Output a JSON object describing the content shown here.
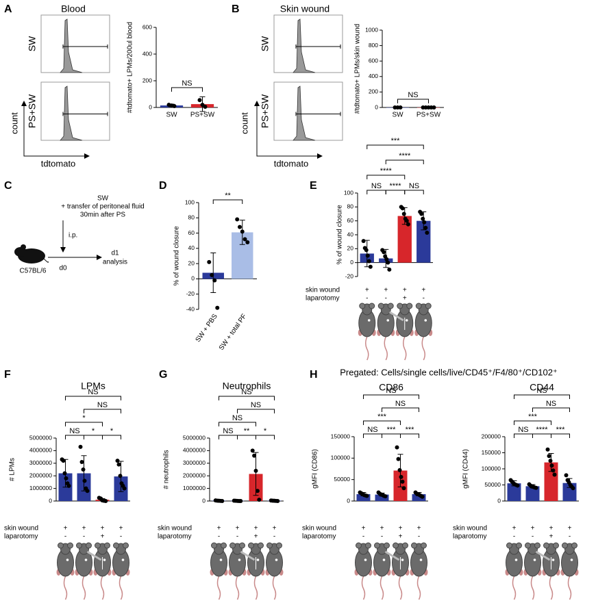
{
  "figure": {
    "panel_labels": [
      "A",
      "B",
      "C",
      "D",
      "E",
      "F",
      "G",
      "H"
    ],
    "flow": [
      {
        "title": "Blood",
        "rows": [
          "SW",
          "PS+SW"
        ],
        "row_colors": [
          "#2b3a9a",
          "#d7262b"
        ],
        "y_label": "count",
        "x_label": "tdtomato"
      },
      {
        "title": "Skin wound",
        "rows": [
          "SW",
          "PS+SW"
        ],
        "row_colors": [
          "#2b3a9a",
          "#d7262b"
        ],
        "y_label": "count",
        "x_label": "tdtomato"
      }
    ],
    "schematic": {
      "lines": [
        "SW",
        "+ transfer of peritoneal fluid",
        "30min after PS"
      ],
      "route": "i.p.",
      "strain": "C57BL/6",
      "start": "d0",
      "end": "d1",
      "end_note": "analysis"
    },
    "pregated": "Pregated: Cells/single cells/live/CD45⁺/F4/80⁺/CD102⁺"
  },
  "chart_data": [
    {
      "type": "bar",
      "ylabel": "#tdtomato+ LPMs/200ul blood",
      "categories": [
        "SW",
        "PS+SW"
      ],
      "values": [
        15,
        25
      ],
      "errors": [
        10,
        55
      ],
      "colors": [
        "#2b3a9a",
        "#d7262b"
      ],
      "points": [
        [
          20,
          15,
          10
        ],
        [
          55,
          20,
          5
        ]
      ],
      "ylim": [
        0,
        600
      ],
      "yticks": [
        0,
        200,
        400,
        600
      ],
      "comparisons": [
        {
          "groups": [
            0,
            1
          ],
          "label": "NS"
        }
      ]
    },
    {
      "type": "bar",
      "ylabel": "#tdtomato+ LPMs/skin wound",
      "categories": [
        "SW",
        "PS+SW"
      ],
      "values": [
        0,
        0
      ],
      "errors": [
        0,
        0
      ],
      "colors": [
        "#2b3a9a",
        "#d7262b"
      ],
      "points": [
        [
          0,
          0,
          0
        ],
        [
          0,
          0,
          0,
          0,
          0
        ]
      ],
      "ylim": [
        0,
        1000
      ],
      "yticks": [
        0,
        200,
        400,
        600,
        800,
        1000
      ],
      "comparisons": [
        {
          "groups": [
            0,
            1
          ],
          "label": "NS"
        }
      ]
    },
    {
      "type": "bar",
      "ylabel": "% of wound closure",
      "categories": [
        "SW + PBS",
        "SW + total PF"
      ],
      "values": [
        8,
        61
      ],
      "errors": [
        26,
        16
      ],
      "colors": [
        "#2b3a9a",
        "#a9bde6"
      ],
      "points": [
        [
          22,
          5,
          -2,
          -38
        ],
        [
          78,
          68,
          62,
          52,
          48
        ]
      ],
      "ylim": [
        -40,
        100
      ],
      "yticks": [
        -40,
        -20,
        0,
        20,
        40,
        60,
        80,
        100
      ],
      "comparisons": [
        {
          "groups": [
            0,
            1
          ],
          "label": "**"
        }
      ]
    },
    {
      "type": "bar",
      "ylabel": "% of wound closure",
      "conditions": [
        {
          "name": "skin wound",
          "values": [
            "+",
            "+",
            "+",
            "+"
          ]
        },
        {
          "name": "laparotomy",
          "values": [
            "-",
            "-",
            "+",
            "-"
          ]
        }
      ],
      "values": [
        13,
        6,
        67,
        60
      ],
      "errors": [
        19,
        13,
        12,
        13
      ],
      "colors": [
        "#2b3a9a",
        "#2b3a9a",
        "#d7262b",
        "#2b3a9a"
      ],
      "points": [
        [
          31,
          21,
          18,
          10,
          2,
          -6
        ],
        [
          18,
          15,
          9,
          5,
          0,
          -10
        ],
        [
          80,
          78,
          70,
          63,
          60,
          55
        ],
        [
          73,
          70,
          63,
          58,
          50,
          43
        ]
      ],
      "ylim": [
        -20,
        100
      ],
      "yticks": [
        -20,
        0,
        20,
        40,
        60,
        80,
        100
      ],
      "comparisons": [
        {
          "groups": [
            0,
            1
          ],
          "label": "NS"
        },
        {
          "groups": [
            2,
            3
          ],
          "label": "NS"
        },
        {
          "groups": [
            1,
            2
          ],
          "label": "****"
        },
        {
          "groups": [
            0,
            2
          ],
          "label": "****"
        },
        {
          "groups": [
            1,
            3
          ],
          "label": "****"
        },
        {
          "groups": [
            0,
            3
          ],
          "label": "***"
        }
      ]
    },
    {
      "type": "bar",
      "title": "LPMs",
      "ylabel": "# LPMs",
      "conditions": [
        {
          "name": "skin wound",
          "values": [
            "+",
            "+",
            "+",
            "+"
          ]
        },
        {
          "name": "laparotomy",
          "values": [
            "-",
            "-",
            "+",
            "-"
          ]
        }
      ],
      "values": [
        2200000,
        2200000,
        100000,
        1950000
      ],
      "errors": [
        1100000,
        1400000,
        100000,
        1200000
      ],
      "colors": [
        "#2b3a9a",
        "#2b3a9a",
        "#d7262b",
        "#2b3a9a"
      ],
      "points": [
        [
          3300000,
          3200000,
          2200000,
          1800000,
          1400000,
          1200000
        ],
        [
          4300000,
          3100000,
          2500000,
          1600000,
          1000000,
          800000
        ],
        [
          250000,
          200000,
          50000,
          20000,
          0
        ],
        [
          3200000,
          2900000,
          2000000,
          1400000,
          1200000,
          1000000
        ]
      ],
      "ylim": [
        0,
        5000000
      ],
      "yticks": [
        0,
        1000000,
        2000000,
        3000000,
        4000000,
        5000000
      ],
      "comparisons": [
        {
          "groups": [
            0,
            1
          ],
          "label": "NS"
        },
        {
          "groups": [
            1,
            2
          ],
          "label": "*"
        },
        {
          "groups": [
            2,
            3
          ],
          "label": "*"
        },
        {
          "groups": [
            0,
            2
          ],
          "label": "*"
        },
        {
          "groups": [
            1,
            3
          ],
          "label": "NS"
        },
        {
          "groups": [
            0,
            3
          ],
          "label": "NS"
        }
      ]
    },
    {
      "type": "bar",
      "title": "Neutrophils",
      "ylabel": "# neutrophils",
      "conditions": [
        {
          "name": "skin wound",
          "values": [
            "+",
            "+",
            "+",
            "+"
          ]
        },
        {
          "name": "laparotomy",
          "values": [
            "-",
            "-",
            "+",
            "-"
          ]
        }
      ],
      "values": [
        30000,
        20000,
        2150000,
        30000
      ],
      "errors": [
        30000,
        20000,
        1700000,
        20000
      ],
      "colors": [
        "#2b3a9a",
        "#2b3a9a",
        "#d7262b",
        "#2b3a9a"
      ],
      "points": [
        [
          50000,
          30000,
          20000,
          10000,
          0
        ],
        [
          30000,
          20000,
          10000,
          0,
          0
        ],
        [
          4000000,
          3600000,
          2400000,
          800000,
          100000
        ],
        [
          40000,
          30000,
          20000,
          10000,
          0
        ]
      ],
      "ylim": [
        0,
        5000000
      ],
      "yticks": [
        0,
        1000000,
        2000000,
        3000000,
        4000000,
        5000000
      ],
      "comparisons": [
        {
          "groups": [
            0,
            1
          ],
          "label": "NS"
        },
        {
          "groups": [
            1,
            2
          ],
          "label": "**"
        },
        {
          "groups": [
            2,
            3
          ],
          "label": "*"
        },
        {
          "groups": [
            0,
            2
          ],
          "label": "NS"
        },
        {
          "groups": [
            1,
            3
          ],
          "label": "NS"
        },
        {
          "groups": [
            0,
            3
          ],
          "label": "NS"
        }
      ]
    },
    {
      "type": "bar",
      "title": "CD86",
      "ylabel": "gMFI (CD86)",
      "conditions": [
        {
          "name": "skin wound",
          "values": [
            "+",
            "+",
            "+",
            "+"
          ]
        },
        {
          "name": "laparotomy",
          "values": [
            "-",
            "-",
            "+",
            "-"
          ]
        }
      ],
      "values": [
        16000,
        15000,
        71000,
        16000
      ],
      "errors": [
        4000,
        3500,
        38000,
        4000
      ],
      "colors": [
        "#2b3a9a",
        "#2b3a9a",
        "#d7262b",
        "#2b3a9a"
      ],
      "points": [
        [
          20000,
          18000,
          16000,
          14000,
          13000,
          12000
        ],
        [
          20000,
          17000,
          15000,
          14000,
          12000,
          11000
        ],
        [
          125000,
          98000,
          72000,
          56000,
          45000,
          30000
        ],
        [
          20000,
          17000,
          16000,
          14000,
          12000,
          10000
        ]
      ],
      "ylim": [
        0,
        150000
      ],
      "yticks": [
        0,
        50000,
        100000,
        150000
      ],
      "comparisons": [
        {
          "groups": [
            0,
            1
          ],
          "label": "NS"
        },
        {
          "groups": [
            1,
            2
          ],
          "label": "***"
        },
        {
          "groups": [
            2,
            3
          ],
          "label": "***"
        },
        {
          "groups": [
            0,
            2
          ],
          "label": "***"
        },
        {
          "groups": [
            1,
            3
          ],
          "label": "NS"
        },
        {
          "groups": [
            0,
            3
          ],
          "label": "NS"
        }
      ]
    },
    {
      "type": "bar",
      "title": "CD44",
      "ylabel": "gMFI (CD44)",
      "conditions": [
        {
          "name": "skin wound",
          "values": [
            "+",
            "+",
            "+",
            "+"
          ]
        },
        {
          "name": "laparotomy",
          "values": [
            "-",
            "-",
            "+",
            "-"
          ]
        }
      ],
      "values": [
        55000,
        46000,
        120000,
        56000
      ],
      "errors": [
        8000,
        5000,
        28000,
        14000
      ],
      "colors": [
        "#2b3a9a",
        "#2b3a9a",
        "#d7262b",
        "#2b3a9a"
      ],
      "points": [
        [
          65000,
          60000,
          55000,
          52000,
          50000,
          48000
        ],
        [
          52000,
          48000,
          45000,
          44000,
          42000,
          41000
        ],
        [
          160000,
          140000,
          125000,
          110000,
          95000,
          82000
        ],
        [
          80000,
          65000,
          58000,
          50000,
          45000,
          40000
        ]
      ],
      "ylim": [
        0,
        200000
      ],
      "yticks": [
        0,
        50000,
        100000,
        150000,
        200000
      ],
      "comparisons": [
        {
          "groups": [
            0,
            1
          ],
          "label": "NS"
        },
        {
          "groups": [
            1,
            2
          ],
          "label": "****"
        },
        {
          "groups": [
            2,
            3
          ],
          "label": "***"
        },
        {
          "groups": [
            0,
            2
          ],
          "label": "***"
        },
        {
          "groups": [
            1,
            3
          ],
          "label": "NS"
        },
        {
          "groups": [
            0,
            3
          ],
          "label": "NS"
        }
      ]
    }
  ]
}
